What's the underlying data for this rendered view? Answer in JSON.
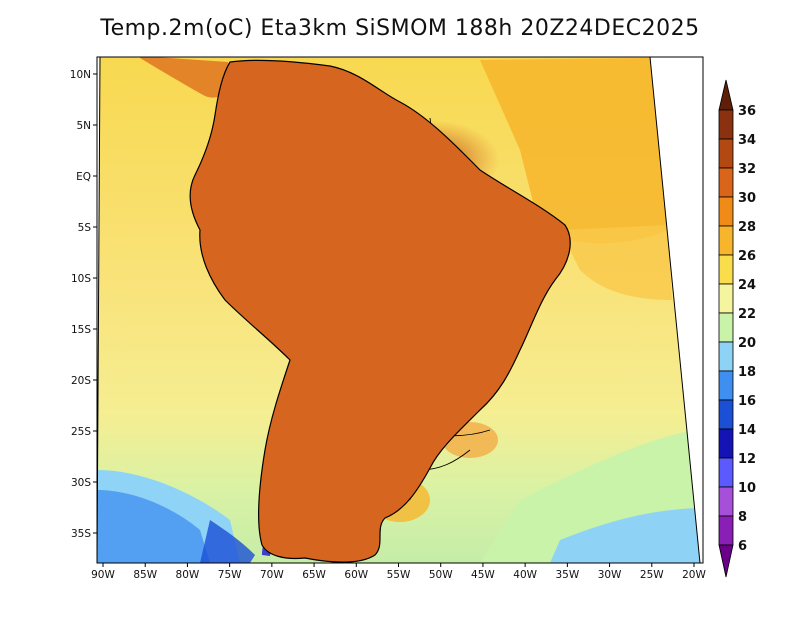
{
  "map": {
    "title": "Temp.2m(oC) Eta3km SiSMOM 188h 20Z24DEC2025",
    "variable": "2 m air temperature",
    "units": "oC",
    "region": "South America",
    "lon_ticks": [
      "90W",
      "85W",
      "80W",
      "75W",
      "70W",
      "65W",
      "60W",
      "55W",
      "50W",
      "45W",
      "40W",
      "35W",
      "30W",
      "25W",
      "20W"
    ],
    "lat_ticks": [
      "10N",
      "5N",
      "EQ",
      "5S",
      "10S",
      "15S",
      "20S",
      "25S",
      "30S",
      "35S"
    ]
  },
  "colorbar": {
    "levels": [
      "6",
      "8",
      "10",
      "12",
      "14",
      "16",
      "18",
      "20",
      "22",
      "24",
      "26",
      "28",
      "30",
      "32",
      "34",
      "36"
    ],
    "colors": [
      "#6a008a",
      "#8a1fb5",
      "#a64fd8",
      "#5a5aff",
      "#1414b4",
      "#1a4fd6",
      "#3f8ff0",
      "#8ed2f6",
      "#c9f3a8",
      "#f5f5a0",
      "#fadd4d",
      "#f7b52c",
      "#f08b18",
      "#d8651a",
      "#b24812",
      "#8a3210",
      "#5e1e08"
    ]
  },
  "palette": {
    "ocean_warm": "#f8d84e",
    "ocean_mild": "#f5ee92",
    "ocean_cool": "#cff1a4",
    "ocean_cold": "#8fd3f6",
    "land_hot": "#d6661f",
    "land_very_hot": "#b04a14",
    "land_extreme": "#8a3210",
    "andes_cold": "#3b3fd0",
    "andes_colder": "#6a38c8",
    "border": "#000000"
  }
}
